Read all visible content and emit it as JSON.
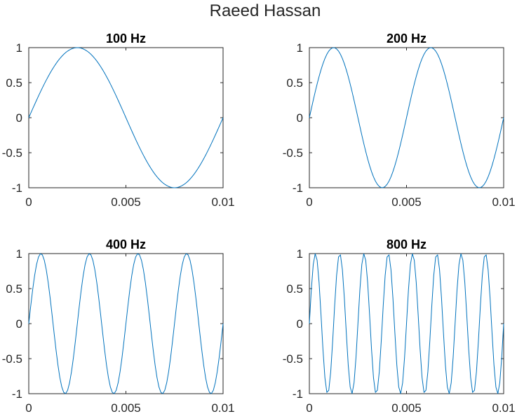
{
  "figure": {
    "title": "Raeed Hassan",
    "colors": {
      "line": "#0072BD",
      "axes": "#262626",
      "background": "#ffffff"
    }
  },
  "chart_data": [
    {
      "type": "line",
      "title": "100 Hz",
      "frequency": 100,
      "xlim": [
        0,
        0.01
      ],
      "ylim": [
        -1,
        1
      ],
      "xticks": [
        "0",
        "0.005",
        "0.01"
      ],
      "yticks": [
        "1",
        "0.5",
        "0",
        "-0.5",
        "-1"
      ],
      "function": "sin(2*pi*100*t)",
      "sample_count": 101
    },
    {
      "type": "line",
      "title": "200 Hz",
      "frequency": 200,
      "xlim": [
        0,
        0.01
      ],
      "ylim": [
        -1,
        1
      ],
      "xticks": [
        "0",
        "0.005",
        "0.01"
      ],
      "yticks": [
        "1",
        "0.5",
        "0",
        "-0.5",
        "-1"
      ],
      "function": "sin(2*pi*200*t)",
      "sample_count": 101
    },
    {
      "type": "line",
      "title": "400 Hz",
      "frequency": 400,
      "xlim": [
        0,
        0.01
      ],
      "ylim": [
        -1,
        1
      ],
      "xticks": [
        "0",
        "0.005",
        "0.01"
      ],
      "yticks": [
        "1",
        "0.5",
        "0",
        "-0.5",
        "-1"
      ],
      "function": "sin(2*pi*400*t)",
      "sample_count": 101
    },
    {
      "type": "line",
      "title": "800 Hz",
      "frequency": 800,
      "xlim": [
        0,
        0.01
      ],
      "ylim": [
        -1,
        1
      ],
      "xticks": [
        "0",
        "0.005",
        "0.01"
      ],
      "yticks": [
        "1",
        "0.5",
        "0",
        "-0.5",
        "-1"
      ],
      "function": "sin(2*pi*800*t)",
      "sample_count": 101
    }
  ]
}
